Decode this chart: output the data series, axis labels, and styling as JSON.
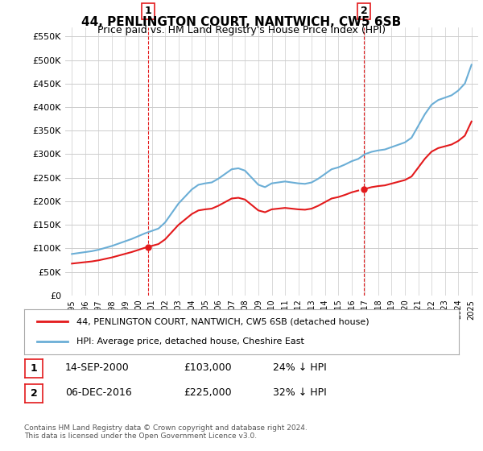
{
  "title": "44, PENLINGTON COURT, NANTWICH, CW5 6SB",
  "subtitle": "Price paid vs. HM Land Registry's House Price Index (HPI)",
  "ylabel_ticks": [
    "£0",
    "£50K",
    "£100K",
    "£150K",
    "£200K",
    "£250K",
    "£300K",
    "£350K",
    "£400K",
    "£450K",
    "£500K",
    "£550K"
  ],
  "ylabel_values": [
    0,
    50000,
    100000,
    150000,
    200000,
    250000,
    300000,
    350000,
    400000,
    450000,
    500000,
    550000
  ],
  "ylim": [
    0,
    570000
  ],
  "hpi_color": "#6baed6",
  "price_color": "#e31a1c",
  "vline_color": "#e31a1c",
  "sale1_x": 2000.71,
  "sale1_price": 103000,
  "sale2_x": 2016.92,
  "sale2_price": 225000,
  "legend_line1": "44, PENLINGTON COURT, NANTWICH, CW5 6SB (detached house)",
  "legend_line2": "HPI: Average price, detached house, Cheshire East",
  "footnote": "Contains HM Land Registry data © Crown copyright and database right 2024.\nThis data is licensed under the Open Government Licence v3.0.",
  "table_rows": [
    [
      "1",
      "14-SEP-2000",
      "£103,000",
      "24% ↓ HPI"
    ],
    [
      "2",
      "06-DEC-2016",
      "£225,000",
      "32% ↓ HPI"
    ]
  ],
  "background_color": "#ffffff",
  "grid_color": "#cccccc"
}
